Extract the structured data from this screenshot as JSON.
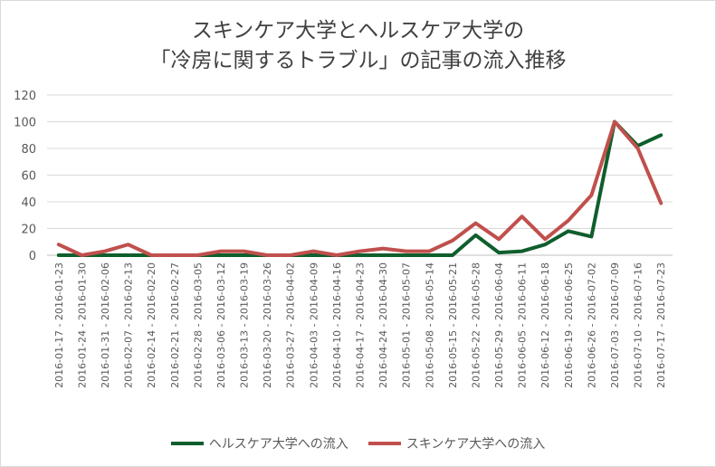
{
  "chart_data": {
    "type": "line",
    "title_line1": "スキンケア大学とヘルスケア大学の",
    "title_line2": "「冷房に関するトラブル」の記事の流入推移",
    "xlabel": "",
    "ylabel": "",
    "ylim": [
      0,
      120
    ],
    "yticks": [
      0,
      20,
      40,
      60,
      80,
      100,
      120
    ],
    "grid": true,
    "legend_position": "bottom",
    "categories": [
      "2016-01-17 - 2016-01-23",
      "2016-01-24 - 2016-01-30",
      "2016-01-31 - 2016-02-06",
      "2016-02-07 - 2016-02-13",
      "2016-02-14 - 2016-02-20",
      "2016-02-21 - 2016-02-27",
      "2016-02-28 - 2016-03-05",
      "2016-03-06 - 2016-03-12",
      "2016-03-13 - 2016-03-19",
      "2016-03-20 - 2016-03-26",
      "2016-03-27 - 2016-04-02",
      "2016-04-03 - 2016-04-09",
      "2016-04-10 - 2016-04-16",
      "2016-04-17 - 2016-04-23",
      "2016-04-24 - 2016-04-30",
      "2016-05-01 - 2016-05-07",
      "2016-05-08 - 2016-05-14",
      "2016-05-15 - 2016-05-21",
      "2016-05-22 - 2016-05-28",
      "2016-05-29 - 2016-06-04",
      "2016-06-05 - 2016-06-11",
      "2016-06-12 - 2016-06-18",
      "2016-06-19 - 2016-06-25",
      "2016-06-26 - 2016-07-02",
      "2016-07-03 - 2016-07-09",
      "2016-07-10 - 2016-07-16",
      "2016-07-17 - 2016-07-23"
    ],
    "series": [
      {
        "name": "ヘルスケア大学への流入",
        "color": "#0f5e2c",
        "values": [
          0,
          0,
          0,
          0,
          0,
          0,
          0,
          0,
          0,
          0,
          0,
          0,
          0,
          0,
          0,
          0,
          0,
          0,
          15,
          2,
          3,
          8,
          18,
          14,
          100,
          82,
          90
        ]
      },
      {
        "name": "スキンケア大学への流入",
        "color": "#c0504d",
        "values": [
          8,
          0,
          3,
          8,
          0,
          0,
          0,
          3,
          3,
          0,
          0,
          3,
          0,
          3,
          5,
          3,
          3,
          11,
          24,
          12,
          29,
          12,
          26,
          45,
          100,
          80,
          39
        ]
      }
    ]
  }
}
